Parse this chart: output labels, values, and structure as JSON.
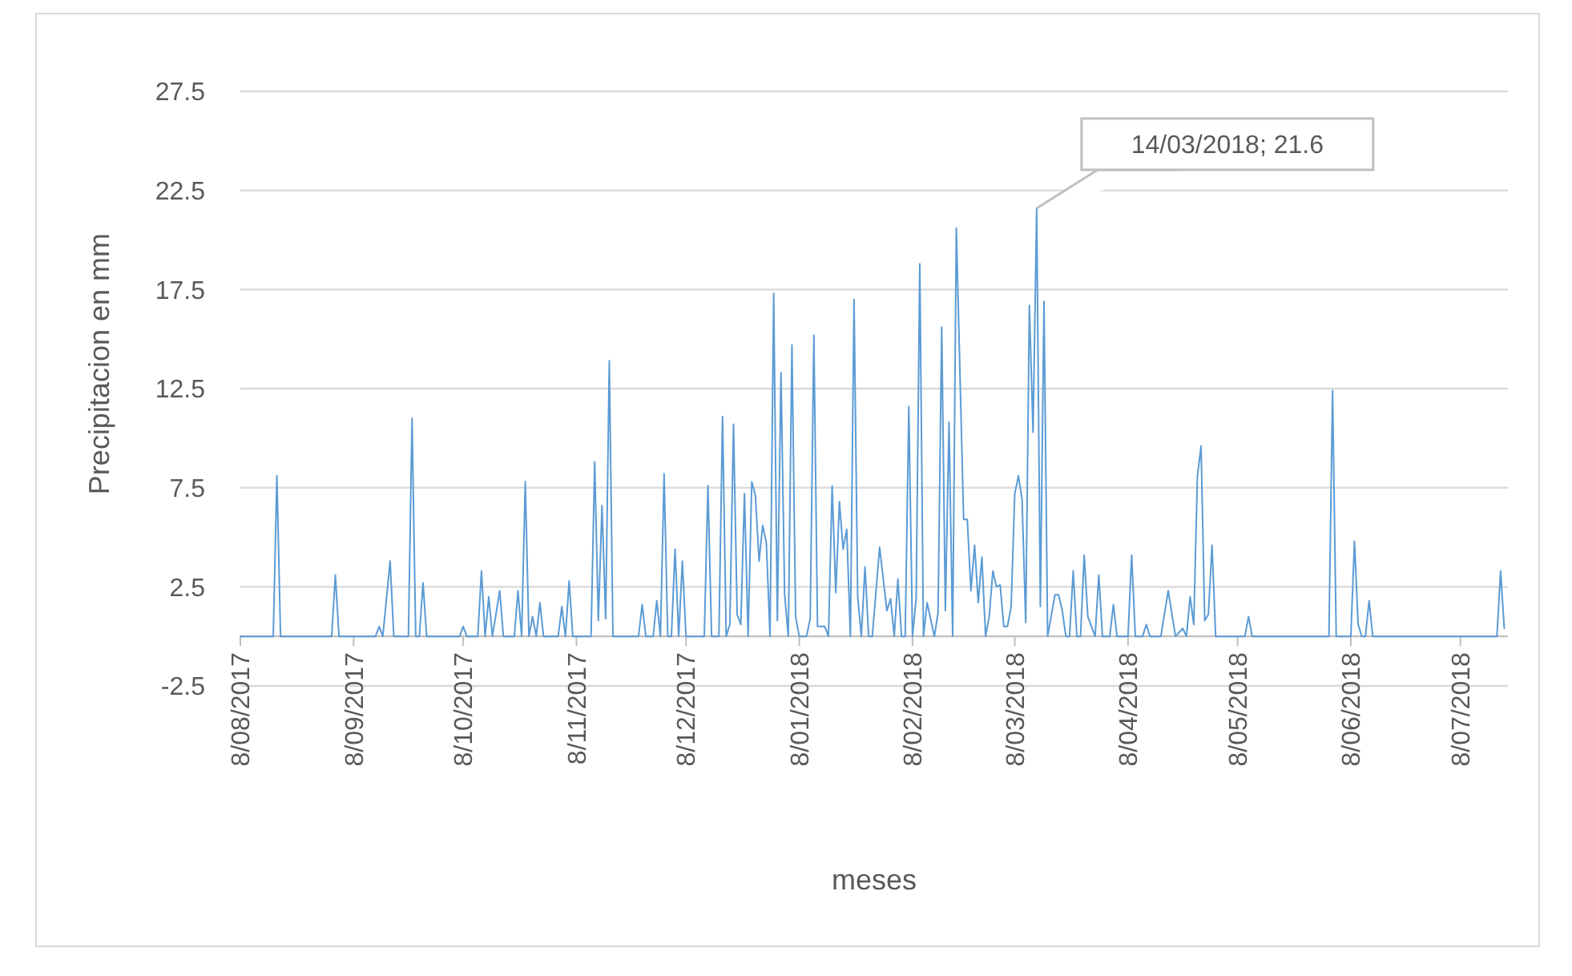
{
  "chart_data": {
    "type": "line",
    "xlabel": "meses",
    "ylabel": "Precipitacion en mm",
    "grid": "y",
    "xlim": [
      "2017-08-08",
      "2018-07-21"
    ],
    "ylim": [
      -2.5,
      27.5
    ],
    "yticks": [
      -2.5,
      2.5,
      7.5,
      12.5,
      17.5,
      22.5,
      27.5
    ],
    "xticks": [
      {
        "value": "2017-08-08",
        "label": "8/08/2017"
      },
      {
        "value": "2017-09-08",
        "label": "8/09/2017"
      },
      {
        "value": "2017-10-08",
        "label": "8/10/2017"
      },
      {
        "value": "2017-11-08",
        "label": "8/11/2017"
      },
      {
        "value": "2017-12-08",
        "label": "8/12/2017"
      },
      {
        "value": "2018-01-08",
        "label": "8/01/2018"
      },
      {
        "value": "2018-02-08",
        "label": "8/02/2018"
      },
      {
        "value": "2018-03-08",
        "label": "8/03/2018"
      },
      {
        "value": "2018-04-08",
        "label": "8/04/2018"
      },
      {
        "value": "2018-05-08",
        "label": "8/05/2018"
      },
      {
        "value": "2018-06-08",
        "label": "8/06/2018"
      },
      {
        "value": "2018-07-08",
        "label": "8/07/2018"
      }
    ],
    "annotations": [
      {
        "text": "14/03/2018; 21.6",
        "x": "2018-03-14",
        "y": 21.6
      }
    ],
    "series": [
      {
        "color": "#5b9bd5",
        "x": [
          "2017-08-08",
          "2017-08-17",
          "2017-08-18",
          "2017-08-19",
          "2017-09-02",
          "2017-09-03",
          "2017-09-04",
          "2017-09-14",
          "2017-09-15",
          "2017-09-16",
          "2017-09-18",
          "2017-09-19",
          "2017-09-23",
          "2017-09-24",
          "2017-09-25",
          "2017-09-26",
          "2017-09-27",
          "2017-09-28",
          "2017-10-07",
          "2017-10-08",
          "2017-10-09",
          "2017-10-12",
          "2017-10-13",
          "2017-10-14",
          "2017-10-15",
          "2017-10-16",
          "2017-10-18",
          "2017-10-19",
          "2017-10-22",
          "2017-10-23",
          "2017-10-24",
          "2017-10-25",
          "2017-10-26",
          "2017-10-27",
          "2017-10-28",
          "2017-10-29",
          "2017-10-30",
          "2017-11-03",
          "2017-11-04",
          "2017-11-05",
          "2017-11-06",
          "2017-11-07",
          "2017-11-12",
          "2017-11-13",
          "2017-11-14",
          "2017-11-15",
          "2017-11-16",
          "2017-11-17",
          "2017-11-18",
          "2017-11-25",
          "2017-11-26",
          "2017-11-27",
          "2017-11-29",
          "2017-11-30",
          "2017-12-01",
          "2017-12-02",
          "2017-12-03",
          "2017-12-04",
          "2017-12-05",
          "2017-12-06",
          "2017-12-07",
          "2017-12-08",
          "2017-12-13",
          "2017-12-14",
          "2017-12-15",
          "2017-12-17",
          "2017-12-18",
          "2017-12-19",
          "2017-12-20",
          "2017-12-21",
          "2017-12-22",
          "2017-12-23",
          "2017-12-24",
          "2017-12-25",
          "2017-12-26",
          "2017-12-27",
          "2017-12-28",
          "2017-12-29",
          "2017-12-30",
          "2017-12-31",
          "2018-01-01",
          "2018-01-02",
          "2018-01-03",
          "2018-01-04",
          "2018-01-05",
          "2018-01-06",
          "2018-01-07",
          "2018-01-08",
          "2018-01-10",
          "2018-01-11",
          "2018-01-12",
          "2018-01-13",
          "2018-01-14",
          "2018-01-15",
          "2018-01-16",
          "2018-01-17",
          "2018-01-18",
          "2018-01-19",
          "2018-01-20",
          "2018-01-21",
          "2018-01-22",
          "2018-01-23",
          "2018-01-24",
          "2018-01-25",
          "2018-01-26",
          "2018-01-27",
          "2018-01-28",
          "2018-01-30",
          "2018-02-01",
          "2018-02-02",
          "2018-02-03",
          "2018-02-04",
          "2018-02-05",
          "2018-02-06",
          "2018-02-07",
          "2018-02-08",
          "2018-02-09",
          "2018-02-10",
          "2018-02-11",
          "2018-02-12",
          "2018-02-14",
          "2018-02-15",
          "2018-02-16",
          "2018-02-17",
          "2018-02-18",
          "2018-02-19",
          "2018-02-20",
          "2018-02-22",
          "2018-02-23",
          "2018-02-24",
          "2018-02-25",
          "2018-02-26",
          "2018-02-27",
          "2018-02-28",
          "2018-03-01",
          "2018-03-02",
          "2018-03-03",
          "2018-03-04",
          "2018-03-05",
          "2018-03-06",
          "2018-03-07",
          "2018-03-08",
          "2018-03-09",
          "2018-03-10",
          "2018-03-11",
          "2018-03-12",
          "2018-03-13",
          "2018-03-14",
          "2018-03-15",
          "2018-03-16",
          "2018-03-17",
          "2018-03-19",
          "2018-03-20",
          "2018-03-21",
          "2018-03-22",
          "2018-03-23",
          "2018-03-24",
          "2018-03-25",
          "2018-03-26",
          "2018-03-27",
          "2018-03-28",
          "2018-03-29",
          "2018-03-30",
          "2018-03-31",
          "2018-04-01",
          "2018-04-03",
          "2018-04-04",
          "2018-04-05",
          "2018-04-08",
          "2018-04-09",
          "2018-04-10",
          "2018-04-12",
          "2018-04-13",
          "2018-04-14",
          "2018-04-17",
          "2018-04-19",
          "2018-04-21",
          "2018-04-23",
          "2018-04-24",
          "2018-04-25",
          "2018-04-26",
          "2018-04-27",
          "2018-04-28",
          "2018-04-29",
          "2018-04-30",
          "2018-05-01",
          "2018-05-02",
          "2018-05-10",
          "2018-05-11",
          "2018-05-12",
          "2018-06-02",
          "2018-06-03",
          "2018-06-04",
          "2018-06-08",
          "2018-06-09",
          "2018-06-10",
          "2018-06-11",
          "2018-06-12",
          "2018-06-13",
          "2018-06-14",
          "2018-07-18",
          "2018-07-19",
          "2018-07-20"
        ],
        "values": [
          0,
          0,
          8.1,
          0,
          0,
          3.1,
          0,
          0,
          0.5,
          0,
          3.8,
          0,
          0,
          11.0,
          0,
          0,
          2.7,
          0,
          0,
          0.5,
          0,
          0,
          3.3,
          0,
          2.0,
          0,
          2.3,
          0,
          0,
          2.3,
          0,
          7.8,
          0,
          1.0,
          0,
          1.7,
          0,
          0,
          1.5,
          0,
          2.8,
          0,
          0,
          8.8,
          0.8,
          6.6,
          0.9,
          13.9,
          0,
          0,
          1.6,
          0,
          0,
          1.8,
          0,
          8.2,
          0,
          0,
          4.4,
          0,
          3.8,
          0,
          0,
          7.6,
          0,
          0,
          11.1,
          0,
          0.6,
          10.7,
          1.1,
          0.6,
          7.2,
          0,
          7.8,
          7.1,
          3.8,
          5.6,
          4.7,
          0,
          17.3,
          0.8,
          13.3,
          2.1,
          0,
          14.7,
          1.0,
          0,
          0,
          0.9,
          15.2,
          0.5,
          0.5,
          0.5,
          0,
          7.6,
          2.2,
          6.8,
          4.4,
          5.4,
          0,
          17.0,
          2.0,
          0,
          3.5,
          0,
          0,
          4.5,
          1.3,
          1.9,
          0,
          2.9,
          0,
          0,
          11.6,
          0,
          1.9,
          18.8,
          0,
          1.7,
          0,
          1.2,
          15.6,
          1.3,
          10.8,
          0,
          20.6,
          5.9,
          5.9,
          2.3,
          4.6,
          1.7,
          4.0,
          0,
          1.0,
          3.3,
          2.5,
          2.6,
          0.5,
          0.5,
          1.5,
          7.2,
          8.1,
          6.9,
          0.7,
          16.7,
          10.3,
          21.6,
          1.5,
          16.9,
          0,
          2.1,
          2.1,
          1.3,
          0,
          0,
          3.3,
          0,
          0,
          4.1,
          1.0,
          0.5,
          0,
          3.1,
          0,
          0,
          1.6,
          0,
          0,
          4.1,
          0,
          0,
          0.6,
          0,
          0,
          2.3,
          0,
          0.4,
          0,
          2.0,
          0.6,
          8.1,
          9.6,
          0.8,
          1.1,
          4.6,
          0,
          0,
          1.0,
          0,
          0,
          12.4,
          0,
          0,
          4.8,
          0.6,
          0,
          0,
          1.8,
          0,
          0,
          3.3,
          0.4
        ]
      }
    ]
  }
}
